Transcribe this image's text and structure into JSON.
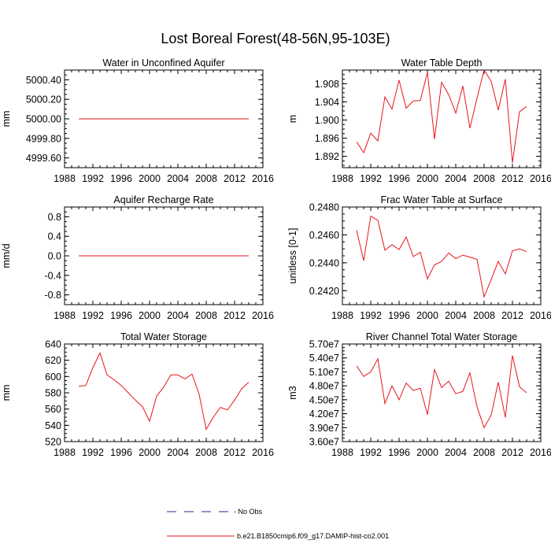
{
  "title": "Lost Boreal Forest(48-56N,95-103E)",
  "colors": {
    "model": "#e8141b",
    "obs": "#2b1f8f"
  },
  "legend": {
    "obs_label": "- No Obs",
    "model_label": "b.e21.B1850cmip6.f09_g17.DAMIP-hist-co2.001"
  },
  "chart_data": [
    {
      "type": "line",
      "title": "Water in Unconfined Aquifer",
      "ylabel": "mm",
      "xlim": [
        1988,
        2016
      ],
      "xticks": [
        "1988",
        "1992",
        "1996",
        "2000",
        "2004",
        "2008",
        "2012",
        "2016"
      ],
      "ylim": [
        4999.5,
        5000.5
      ],
      "yticks": [
        4999.6,
        4999.8,
        5000.0,
        5000.2,
        5000.4
      ],
      "ytick_labels": [
        "4999.60",
        "4999.80",
        "5000.00",
        "5000.20",
        "5000.40"
      ],
      "x": [
        1990,
        1991,
        1992,
        1993,
        1994,
        1995,
        1996,
        1997,
        1998,
        1999,
        2000,
        2001,
        2002,
        2003,
        2004,
        2005,
        2006,
        2007,
        2008,
        2009,
        2010,
        2011,
        2012,
        2013,
        2014
      ],
      "values": [
        5000,
        5000,
        5000,
        5000,
        5000,
        5000,
        5000,
        5000,
        5000,
        5000,
        5000,
        5000,
        5000,
        5000,
        5000,
        5000,
        5000,
        5000,
        5000,
        5000,
        5000,
        5000,
        5000,
        5000,
        5000
      ]
    },
    {
      "type": "line",
      "title": "Water Table Depth",
      "ylabel": "m",
      "xlim": [
        1988,
        2016
      ],
      "xticks": [
        "1988",
        "1992",
        "1996",
        "2000",
        "2004",
        "2008",
        "2012",
        "2016"
      ],
      "ylim": [
        1.8895,
        1.911
      ],
      "yticks": [
        1.892,
        1.896,
        1.9,
        1.904,
        1.908
      ],
      "ytick_labels": [
        "1.892",
        "1.896",
        "1.900",
        "1.904",
        "1.908"
      ],
      "x": [
        1990,
        1991,
        1992,
        1993,
        1994,
        1995,
        1996,
        1997,
        1998,
        1999,
        2000,
        2001,
        2002,
        2003,
        2004,
        2005,
        2006,
        2007,
        2008,
        2009,
        2010,
        2011,
        2012,
        2013,
        2014
      ],
      "values": [
        1.8952,
        1.8928,
        1.8971,
        1.8954,
        1.9051,
        1.9024,
        1.9088,
        1.9026,
        1.9042,
        1.9043,
        1.9105,
        1.8958,
        1.9083,
        1.9056,
        1.9015,
        1.9075,
        1.8982,
        1.9048,
        1.911,
        1.9085,
        1.9022,
        1.909,
        1.8906,
        1.9018,
        1.903
      ]
    },
    {
      "type": "line",
      "title": "Aquifer Recharge Rate",
      "ylabel": "mm/d",
      "xlim": [
        1988,
        2016
      ],
      "xticks": [
        "1988",
        "1992",
        "1996",
        "2000",
        "2004",
        "2008",
        "2012",
        "2016"
      ],
      "ylim": [
        -1.0,
        1.0
      ],
      "yticks": [
        -0.8,
        -0.4,
        0.0,
        0.4,
        0.8
      ],
      "ytick_labels": [
        "-0.8",
        "-0.4",
        "0.0",
        "0.4",
        "0.8"
      ],
      "x": [
        1990,
        1991,
        1992,
        1993,
        1994,
        1995,
        1996,
        1997,
        1998,
        1999,
        2000,
        2001,
        2002,
        2003,
        2004,
        2005,
        2006,
        2007,
        2008,
        2009,
        2010,
        2011,
        2012,
        2013,
        2014
      ],
      "values": [
        0,
        0,
        0,
        0,
        0,
        0,
        0,
        0,
        0,
        0,
        0,
        0,
        0,
        0,
        0,
        0,
        0,
        0,
        0,
        0,
        0,
        0,
        0,
        0,
        0
      ]
    },
    {
      "type": "line",
      "title": "Frac Water Table at Surface",
      "ylabel": "unitless [0-1]",
      "xlim": [
        1988,
        2016
      ],
      "xticks": [
        "1988",
        "1992",
        "1996",
        "2000",
        "2004",
        "2008",
        "2012",
        "2016"
      ],
      "ylim": [
        0.241,
        0.248
      ],
      "yticks": [
        0.242,
        0.244,
        0.246,
        0.248
      ],
      "ytick_labels": [
        "0.2420",
        "0.2440",
        "0.2460",
        "0.2480"
      ],
      "x": [
        1990,
        1991,
        1992,
        1993,
        1994,
        1995,
        1996,
        1997,
        1998,
        1999,
        2000,
        2001,
        2002,
        2003,
        2004,
        2005,
        2006,
        2007,
        2008,
        2009,
        2010,
        2011,
        2012,
        2013,
        2014
      ],
      "values": [
        0.24635,
        0.24415,
        0.24735,
        0.24705,
        0.2449,
        0.2453,
        0.24495,
        0.24585,
        0.24445,
        0.24475,
        0.24285,
        0.24385,
        0.2441,
        0.2447,
        0.2443,
        0.24455,
        0.2444,
        0.24425,
        0.24155,
        0.2428,
        0.2441,
        0.2432,
        0.24485,
        0.245,
        0.2448
      ]
    },
    {
      "type": "line",
      "title": "Total Water Storage",
      "ylabel": "mm",
      "xlim": [
        1988,
        2016
      ],
      "xticks": [
        "1988",
        "1992",
        "1996",
        "2000",
        "2004",
        "2008",
        "2012",
        "2016"
      ],
      "ylim": [
        520,
        640
      ],
      "yticks": [
        520,
        540,
        560,
        580,
        600,
        620,
        640
      ],
      "ytick_labels": [
        "520",
        "540",
        "560",
        "580",
        "600",
        "620",
        "640"
      ],
      "x": [
        1990,
        1991,
        1992,
        1993,
        1994,
        1995,
        1996,
        1997,
        1998,
        1999,
        2000,
        2001,
        2002,
        2003,
        2004,
        2005,
        2006,
        2007,
        2008,
        2009,
        2010,
        2011,
        2012,
        2013,
        2014
      ],
      "values": [
        588,
        589,
        611,
        629,
        602,
        596,
        589,
        580,
        571,
        563,
        545,
        576,
        587,
        602,
        602,
        597,
        603,
        578,
        535,
        550,
        562,
        559,
        571,
        585,
        593
      ]
    },
    {
      "type": "line",
      "title": "River Channel Total Water Storage",
      "ylabel": "m3",
      "xlim": [
        1988,
        2016
      ],
      "xticks": [
        "1988",
        "1992",
        "1996",
        "2000",
        "2004",
        "2008",
        "2012",
        "2016"
      ],
      "ylim": [
        36000000,
        57000000
      ],
      "yticks": [
        36000000,
        39000000,
        42000000,
        45000000,
        48000000,
        51000000,
        54000000,
        57000000
      ],
      "ytick_labels": [
        "3.60e7",
        "3.90e7",
        "4.20e7",
        "4.50e7",
        "4.80e7",
        "5.10e7",
        "5.40e7",
        "5.70e7"
      ],
      "x": [
        1990,
        1991,
        1992,
        1993,
        1994,
        1995,
        1996,
        1997,
        1998,
        1999,
        2000,
        2001,
        2002,
        2003,
        2004,
        2005,
        2006,
        2007,
        2008,
        2009,
        2010,
        2011,
        2012,
        2013,
        2014
      ],
      "values": [
        52300000,
        50000000,
        51000000,
        53800000,
        44200000,
        48000000,
        45000000,
        48600000,
        47000000,
        47500000,
        41800000,
        51500000,
        47600000,
        49000000,
        46300000,
        46800000,
        50800000,
        43500000,
        39000000,
        41700000,
        48800000,
        41200000,
        54500000,
        47800000,
        46500000
      ]
    }
  ]
}
